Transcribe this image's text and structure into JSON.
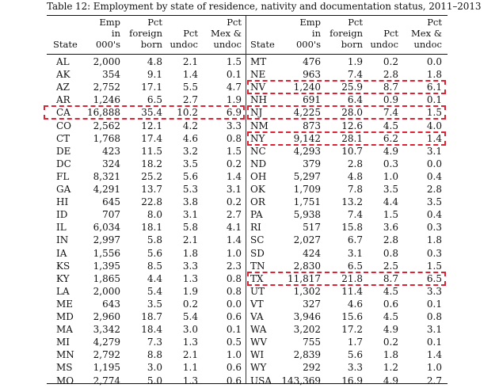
{
  "caption": "Table 12: Employment by state of residence, nativity and documentation status, 2011–2013",
  "columns": {
    "state": "State",
    "emp": [
      "Emp",
      "in",
      "000's"
    ],
    "pct_foreign": [
      "Pct",
      "foreign",
      "born"
    ],
    "pct_undoc": [
      "Pct",
      "undoc"
    ],
    "pct_mex": [
      "Pct",
      "Mex &",
      "undoc"
    ]
  },
  "left_rows": [
    {
      "state": "AL",
      "emp": "2,000",
      "foreign": "4.8",
      "undoc": "2.1",
      "mex": "1.5"
    },
    {
      "state": "AK",
      "emp": "354",
      "foreign": "9.1",
      "undoc": "1.4",
      "mex": "0.1"
    },
    {
      "state": "AZ",
      "emp": "2,752",
      "foreign": "17.1",
      "undoc": "5.5",
      "mex": "4.7"
    },
    {
      "state": "AR",
      "emp": "1,246",
      "foreign": "6.5",
      "undoc": "2.7",
      "mex": "1.9"
    },
    {
      "state": "CA",
      "emp": "16,888",
      "foreign": "35.4",
      "undoc": "10.2",
      "mex": "6.9"
    },
    {
      "state": "CO",
      "emp": "2,562",
      "foreign": "12.1",
      "undoc": "4.2",
      "mex": "3.3"
    },
    {
      "state": "CT",
      "emp": "1,768",
      "foreign": "17.4",
      "undoc": "4.6",
      "mex": "0.8"
    },
    {
      "state": "DE",
      "emp": "423",
      "foreign": "11.5",
      "undoc": "3.2",
      "mex": "1.5"
    },
    {
      "state": "DC",
      "emp": "324",
      "foreign": "18.2",
      "undoc": "3.5",
      "mex": "0.2"
    },
    {
      "state": "FL",
      "emp": "8,321",
      "foreign": "25.2",
      "undoc": "5.6",
      "mex": "1.4"
    },
    {
      "state": "GA",
      "emp": "4,291",
      "foreign": "13.7",
      "undoc": "5.3",
      "mex": "3.1"
    },
    {
      "state": "HI",
      "emp": "645",
      "foreign": "22.8",
      "undoc": "3.8",
      "mex": "0.2"
    },
    {
      "state": "ID",
      "emp": "707",
      "foreign": "8.0",
      "undoc": "3.1",
      "mex": "2.7"
    },
    {
      "state": "IL",
      "emp": "6,034",
      "foreign": "18.1",
      "undoc": "5.8",
      "mex": "4.1"
    },
    {
      "state": "IN",
      "emp": "2,997",
      "foreign": "5.8",
      "undoc": "2.1",
      "mex": "1.4"
    },
    {
      "state": "IA",
      "emp": "1,556",
      "foreign": "5.6",
      "undoc": "1.8",
      "mex": "1.0"
    },
    {
      "state": "KS",
      "emp": "1,395",
      "foreign": "8.5",
      "undoc": "3.3",
      "mex": "2.3"
    },
    {
      "state": "KY",
      "emp": "1,865",
      "foreign": "4.4",
      "undoc": "1.3",
      "mex": "0.8"
    },
    {
      "state": "LA",
      "emp": "2,000",
      "foreign": "5.4",
      "undoc": "1.9",
      "mex": "0.8"
    },
    {
      "state": "ME",
      "emp": "643",
      "foreign": "3.5",
      "undoc": "0.2",
      "mex": "0.0"
    },
    {
      "state": "MD",
      "emp": "2,960",
      "foreign": "18.7",
      "undoc": "5.4",
      "mex": "0.6"
    },
    {
      "state": "MA",
      "emp": "3,342",
      "foreign": "18.4",
      "undoc": "3.0",
      "mex": "0.1"
    },
    {
      "state": "MI",
      "emp": "4,279",
      "foreign": "7.3",
      "undoc": "1.3",
      "mex": "0.5"
    },
    {
      "state": "MN",
      "emp": "2,792",
      "foreign": "8.8",
      "undoc": "2.1",
      "mex": "1.0"
    },
    {
      "state": "MS",
      "emp": "1,195",
      "foreign": "3.0",
      "undoc": "1.1",
      "mex": "0.6"
    },
    {
      "state": "MO",
      "emp": "2,774",
      "foreign": "5.0",
      "undoc": "1.3",
      "mex": "0.6"
    }
  ],
  "right_rows": [
    {
      "state": "MT",
      "emp": "476",
      "foreign": "1.9",
      "undoc": "0.2",
      "mex": "0.0"
    },
    {
      "state": "NE",
      "emp": "963",
      "foreign": "7.4",
      "undoc": "2.8",
      "mex": "1.8"
    },
    {
      "state": "NV",
      "emp": "1,240",
      "foreign": "25.9",
      "undoc": "8.7",
      "mex": "6.1"
    },
    {
      "state": "NH",
      "emp": "691",
      "foreign": "6.4",
      "undoc": "0.9",
      "mex": "0.1"
    },
    {
      "state": "NJ",
      "emp": "4,225",
      "foreign": "28.0",
      "undoc": "7.4",
      "mex": "1.5"
    },
    {
      "state": "NM",
      "emp": "873",
      "foreign": "12.6",
      "undoc": "4.5",
      "mex": "4.0"
    },
    {
      "state": "NY",
      "emp": "9,142",
      "foreign": "28.1",
      "undoc": "6.2",
      "mex": "1.4"
    },
    {
      "state": "NC",
      "emp": "4,293",
      "foreign": "10.7",
      "undoc": "4.9",
      "mex": "3.1"
    },
    {
      "state": "ND",
      "emp": "379",
      "foreign": "2.8",
      "undoc": "0.3",
      "mex": "0.0"
    },
    {
      "state": "OH",
      "emp": "5,297",
      "foreign": "4.8",
      "undoc": "1.0",
      "mex": "0.4"
    },
    {
      "state": "OK",
      "emp": "1,709",
      "foreign": "7.8",
      "undoc": "3.5",
      "mex": "2.8"
    },
    {
      "state": "OR",
      "emp": "1,751",
      "foreign": "13.2",
      "undoc": "4.4",
      "mex": "3.5"
    },
    {
      "state": "PA",
      "emp": "5,938",
      "foreign": "7.4",
      "undoc": "1.5",
      "mex": "0.4"
    },
    {
      "state": "RI",
      "emp": "517",
      "foreign": "15.8",
      "undoc": "3.6",
      "mex": "0.3"
    },
    {
      "state": "SC",
      "emp": "2,027",
      "foreign": "6.7",
      "undoc": "2.8",
      "mex": "1.8"
    },
    {
      "state": "SD",
      "emp": "424",
      "foreign": "3.1",
      "undoc": "0.8",
      "mex": "0.3"
    },
    {
      "state": "TN",
      "emp": "2,830",
      "foreign": "6.5",
      "undoc": "2.5",
      "mex": "1.5"
    },
    {
      "state": "TX",
      "emp": "11,817",
      "foreign": "21.8",
      "undoc": "8.7",
      "mex": "6.5"
    },
    {
      "state": "UT",
      "emp": "1,302",
      "foreign": "11.4",
      "undoc": "4.5",
      "mex": "3.3"
    },
    {
      "state": "VT",
      "emp": "327",
      "foreign": "4.6",
      "undoc": "0.6",
      "mex": "0.1"
    },
    {
      "state": "VA",
      "emp": "3,946",
      "foreign": "15.6",
      "undoc": "4.5",
      "mex": "0.8"
    },
    {
      "state": "WA",
      "emp": "3,202",
      "foreign": "17.2",
      "undoc": "4.9",
      "mex": "3.1"
    },
    {
      "state": "WV",
      "emp": "755",
      "foreign": "1.7",
      "undoc": "0.2",
      "mex": "0.1"
    },
    {
      "state": "WI",
      "emp": "2,839",
      "foreign": "5.6",
      "undoc": "1.8",
      "mex": "1.4"
    },
    {
      "state": "WY",
      "emp": "292",
      "foreign": "3.3",
      "undoc": "1.2",
      "mex": "1.0"
    },
    {
      "state": "USA",
      "emp": "143,369",
      "foreign": "16.9",
      "undoc": "4.9",
      "mex": "2.7"
    }
  ],
  "highlighted_rows": {
    "left": [
      "CA"
    ],
    "right": [
      "NV",
      "NJ",
      "NY",
      "TX"
    ]
  },
  "highlight_color": "#dd2233"
}
